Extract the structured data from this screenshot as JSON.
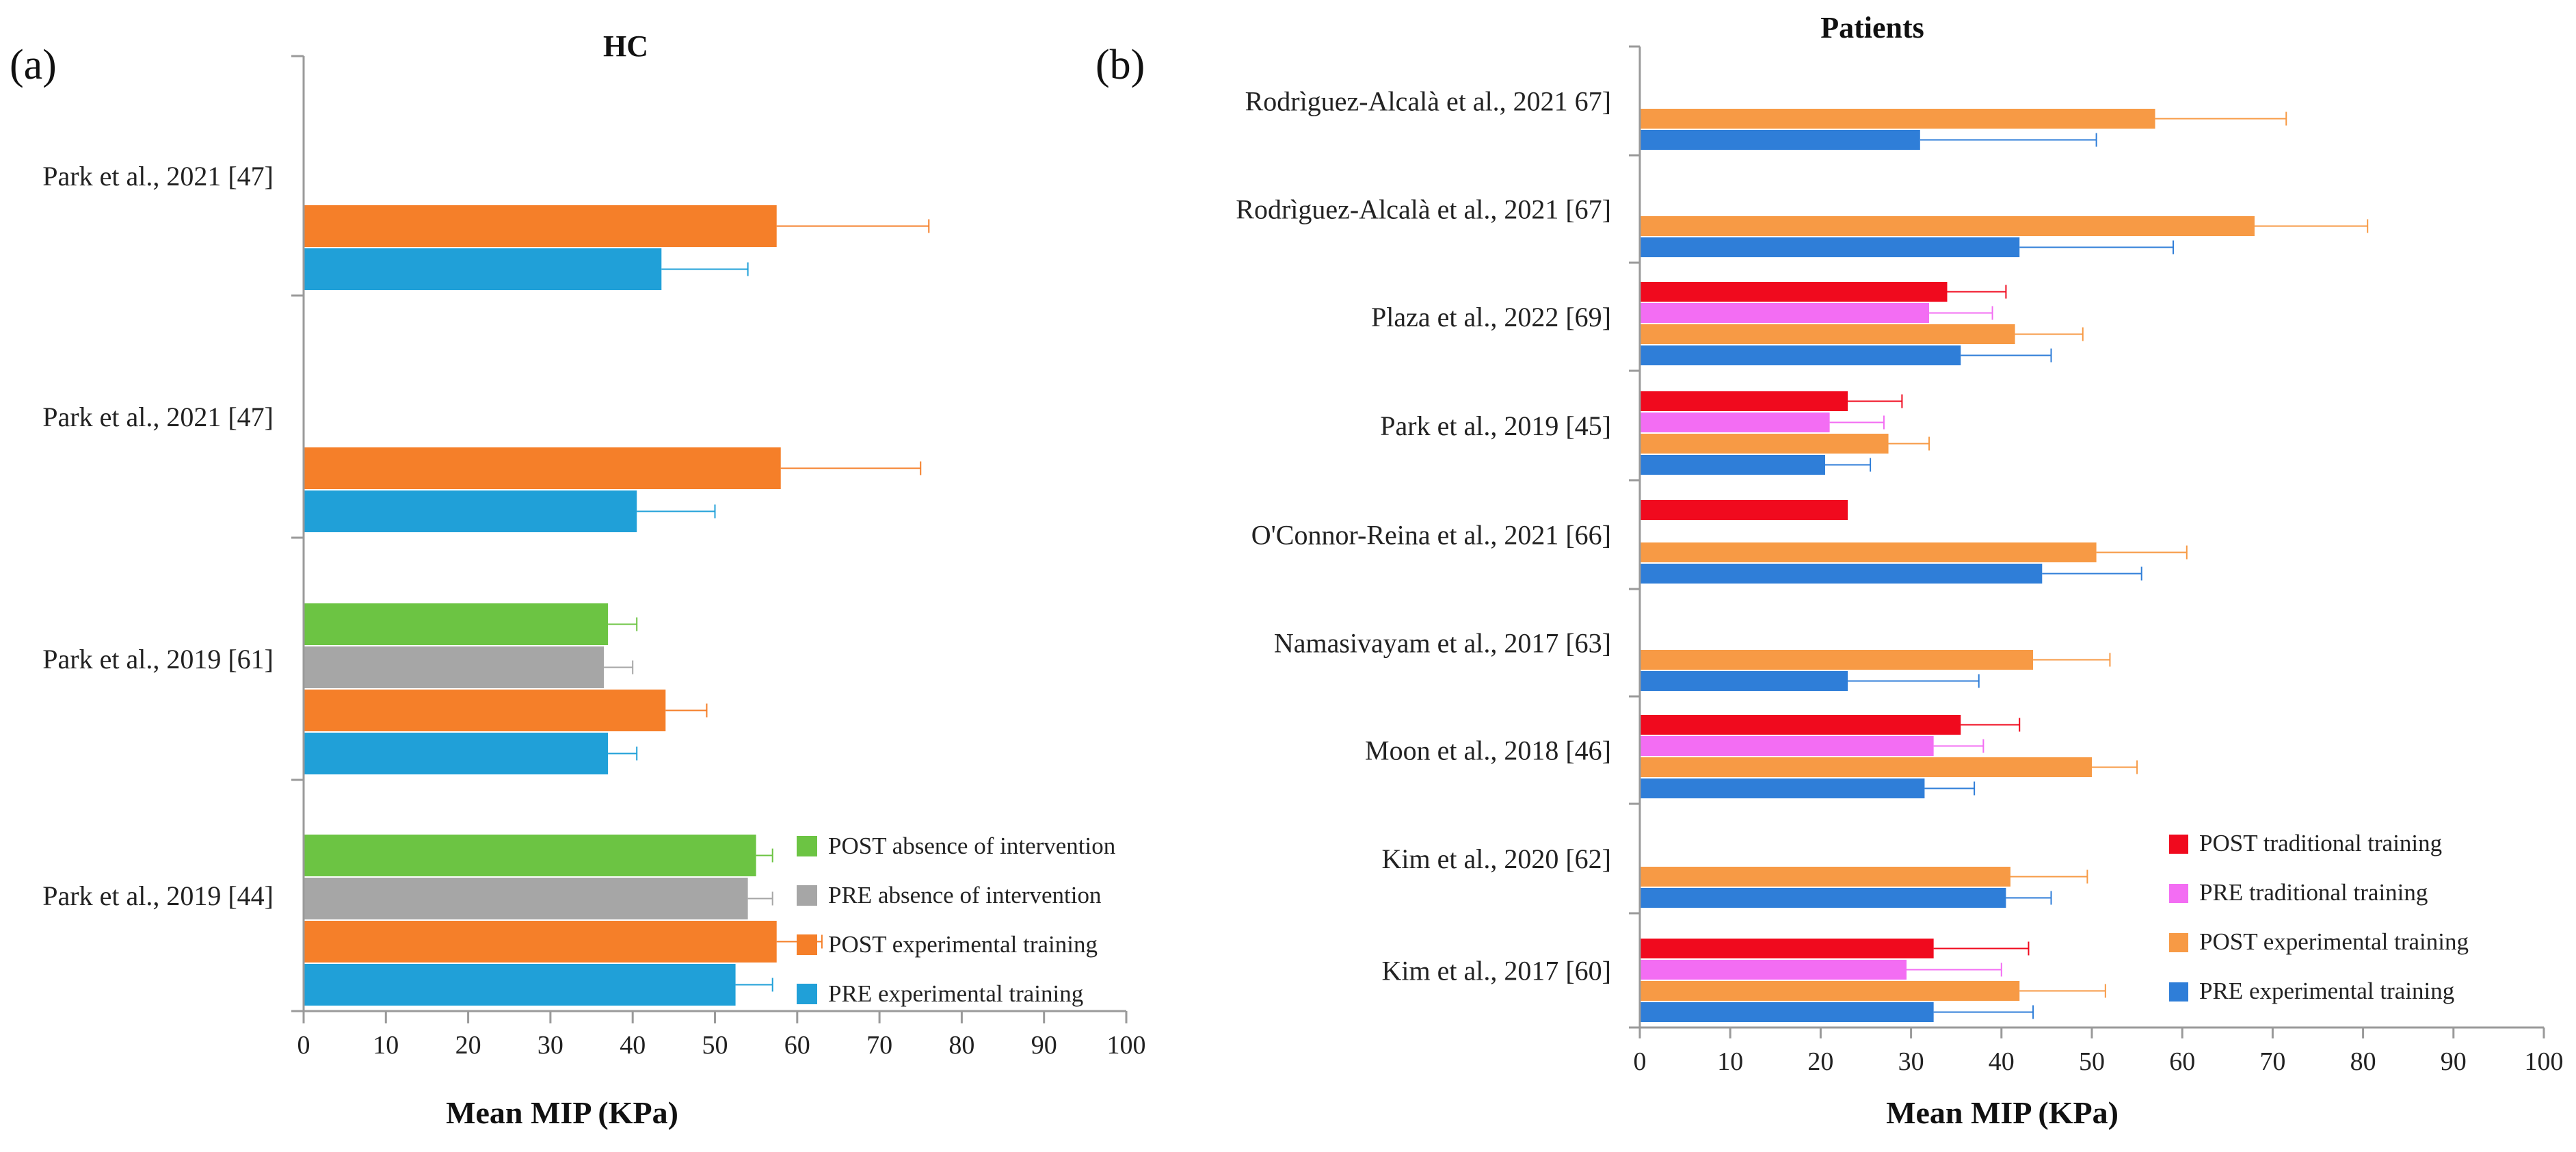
{
  "figure": {
    "panels": [
      "(a)",
      "(b)"
    ]
  },
  "chart_data": [
    {
      "type": "bar",
      "orientation": "horizontal",
      "panel": "(a)",
      "title": "HC",
      "xlabel": "Mean MIP (KPa)",
      "ylabel": "",
      "xlim": [
        0,
        100
      ],
      "xticks": [
        "0",
        "10",
        "20",
        "30",
        "40",
        "50",
        "60",
        "70",
        "80",
        "90",
        "100"
      ],
      "categories": [
        "Park et al., 2021 [47]",
        "Park et al., 2021 [47]",
        "Park et al., 2019 [61]",
        "Park et al., 2019 [44]"
      ],
      "grid": false,
      "legend_position": "bottom-right",
      "series": [
        {
          "name": "POST absence of intervention",
          "color": "#6cc443",
          "values": [
            null,
            null,
            37,
            55
          ],
          "errors": [
            null,
            null,
            3.5,
            2
          ]
        },
        {
          "name": "PRE absence of intervention",
          "color": "#a6a6a6",
          "values": [
            null,
            null,
            36.5,
            54
          ],
          "errors": [
            null,
            null,
            3.5,
            3
          ]
        },
        {
          "name": "POST experimental training",
          "color": "#f57f29",
          "values": [
            57.5,
            58,
            44,
            57.5
          ],
          "errors": [
            18.5,
            17,
            5,
            5.5
          ]
        },
        {
          "name": "PRE experimental training",
          "color": "#20a0d8",
          "values": [
            43.5,
            40.5,
            37,
            52.5
          ],
          "errors": [
            10.5,
            9.5,
            3.5,
            4.5
          ]
        }
      ]
    },
    {
      "type": "bar",
      "orientation": "horizontal",
      "panel": "(b)",
      "title": "Patients",
      "xlabel": "Mean MIP (KPa)",
      "ylabel": "",
      "xlim": [
        0,
        100
      ],
      "xticks": [
        "0",
        "10",
        "20",
        "30",
        "40",
        "50",
        "60",
        "70",
        "80",
        "90",
        "100"
      ],
      "categories": [
        "Rodrìguez-Alcalà et al., 2021 67]",
        "Rodrìguez-Alcalà et al., 2021 [67]",
        "Plaza et al., 2022 [69]",
        "Park et al., 2019 [45]",
        "O'Connor-Reina et al., 2021 [66]",
        "Namasivayam et al., 2017 [63]",
        "Moon et al., 2018 [46]",
        "Kim et al., 2020 [62]",
        "Kim et al., 2017 [60]"
      ],
      "grid": false,
      "legend_position": "bottom-right",
      "series": [
        {
          "name": "POST traditional training",
          "color": "#f00a1e",
          "values": [
            null,
            null,
            34,
            23,
            23,
            null,
            35.5,
            null,
            32.5
          ],
          "errors": [
            null,
            null,
            6.5,
            6,
            null,
            null,
            6.5,
            null,
            10.5
          ],
          "_note_ignore": ""
        },
        {
          "name": "PRE traditional training",
          "color": "#f36df3",
          "values": [
            null,
            null,
            32,
            21,
            null,
            null,
            32.5,
            null,
            29.5
          ],
          "errors": [
            null,
            null,
            7,
            6,
            null,
            null,
            5.5,
            null,
            10.5
          ]
        },
        {
          "name": "POST experimental training",
          "color": "#f79a45",
          "values": [
            57,
            68,
            41.5,
            27.5,
            50.5,
            43.5,
            50,
            41,
            42
          ],
          "errors": [
            14.5,
            12.5,
            7.5,
            4.5,
            10,
            8.5,
            5,
            8.5,
            9.5
          ]
        },
        {
          "name": "PRE experimental training",
          "color": "#2f7ed8",
          "values": [
            31,
            42,
            35.5,
            20.5,
            44.5,
            23,
            31.5,
            40.5,
            32.5
          ],
          "errors": [
            19.5,
            17,
            10,
            5,
            11,
            14.5,
            5.5,
            5,
            11
          ]
        }
      ]
    }
  ]
}
